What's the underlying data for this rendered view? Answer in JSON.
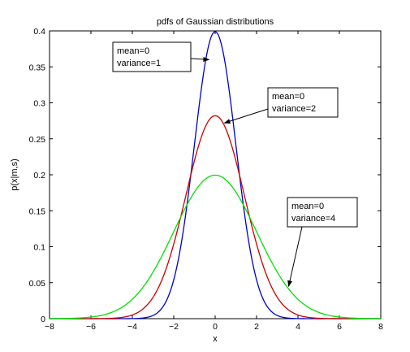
{
  "chart_data": {
    "type": "line",
    "title": "pdfs of Gaussian distributions",
    "xlabel": "x",
    "ylabel": "p(x|m,s)",
    "xlim": [
      -8,
      8
    ],
    "ylim": [
      0,
      0.4
    ],
    "xticks": [
      -8,
      -6,
      -4,
      -2,
      0,
      2,
      4,
      6,
      8
    ],
    "yticks": [
      0,
      0.05,
      0.1,
      0.15,
      0.2,
      0.25,
      0.3,
      0.35,
      0.4
    ],
    "xtick_labels": [
      "−8",
      "−6",
      "−4",
      "−2",
      "0",
      "2",
      "4",
      "6",
      "8"
    ],
    "ytick_labels": [
      "0",
      "0.05",
      "0.1",
      "0.15",
      "0.2",
      "0.25",
      "0.3",
      "0.35",
      "0.4"
    ],
    "grid": false,
    "series": [
      {
        "mean": 0,
        "variance": 1,
        "color": "#0000cc",
        "peak": 0.399
      },
      {
        "mean": 0,
        "variance": 2,
        "color": "#cc0000",
        "peak": 0.282
      },
      {
        "mean": 0,
        "variance": 4,
        "color": "#00e000",
        "peak": 0.199
      }
    ],
    "annotations": [
      {
        "line1": "mean=0",
        "line2": "variance=1",
        "target": [
          -0.3,
          0.36
        ]
      },
      {
        "line1": "mean=0",
        "line2": "variance=2",
        "target": [
          0.45,
          0.272
        ]
      },
      {
        "line1": "mean=0",
        "line2": "variance=4",
        "target": [
          3.55,
          0.045
        ]
      }
    ]
  }
}
